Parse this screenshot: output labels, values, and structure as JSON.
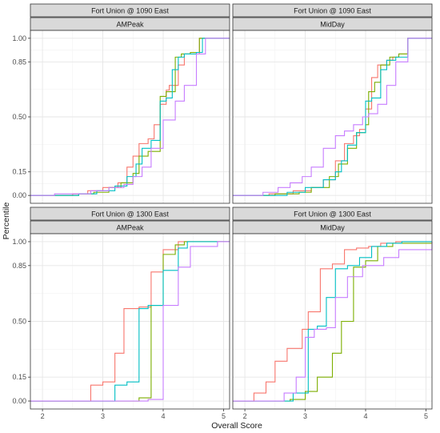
{
  "chart_data": {
    "type": "line",
    "step": true,
    "xlabel": "Overall Score",
    "ylabel": "Percentile",
    "xlim": [
      1.8,
      5.1
    ],
    "ylim": [
      -0.05,
      1.05
    ],
    "x_ticks": [
      2,
      3,
      4,
      5
    ],
    "y_ticks": [
      0.0,
      0.15,
      0.5,
      0.85,
      1.0
    ],
    "y_tick_labels": [
      "0.00",
      "0.15",
      "0.50",
      "0.85",
      "1.00"
    ],
    "grid": true,
    "legend": "none",
    "colors": [
      "#F8766D",
      "#7CAE00",
      "#00BFC4",
      "#C77CFF"
    ],
    "panels": [
      {
        "strip_top": "Fort Union @ 1090 East",
        "strip_bottom": "AMPeak",
        "series": [
          {
            "color": "#F8766D",
            "x": [
              1.8,
              2.5,
              2.75,
              3.0,
              3.25,
              3.4,
              3.5,
              3.6,
              3.75,
              3.85,
              3.95,
              4.05,
              4.1,
              4.25,
              4.35,
              4.5,
              4.6,
              5.1
            ],
            "y": [
              0.0,
              0.01,
              0.03,
              0.05,
              0.08,
              0.18,
              0.25,
              0.33,
              0.36,
              0.45,
              0.58,
              0.67,
              0.7,
              0.83,
              0.9,
              0.9,
              1.0,
              1.0
            ]
          },
          {
            "color": "#7CAE00",
            "x": [
              1.8,
              2.6,
              2.85,
              3.1,
              3.3,
              3.5,
              3.6,
              3.75,
              3.95,
              4.05,
              4.2,
              4.3,
              4.45,
              4.6,
              5.1
            ],
            "y": [
              0.0,
              0.01,
              0.02,
              0.05,
              0.08,
              0.14,
              0.25,
              0.28,
              0.63,
              0.66,
              0.88,
              0.9,
              0.91,
              1.0,
              1.0
            ]
          },
          {
            "color": "#00BFC4",
            "x": [
              1.8,
              2.6,
              2.9,
              3.2,
              3.4,
              3.55,
              3.65,
              3.8,
              3.95,
              4.05,
              4.15,
              4.25,
              4.35,
              4.55,
              4.65,
              5.1
            ],
            "y": [
              0.0,
              0.01,
              0.03,
              0.06,
              0.12,
              0.2,
              0.3,
              0.35,
              0.6,
              0.62,
              0.8,
              0.88,
              0.9,
              0.91,
              1.0,
              1.0
            ]
          },
          {
            "color": "#C77CFF",
            "x": [
              1.8,
              2.2,
              2.8,
              3.1,
              3.35,
              3.5,
              3.65,
              3.8,
              4.0,
              4.2,
              4.35,
              4.55,
              4.7,
              5.1
            ],
            "y": [
              0.0,
              0.01,
              0.03,
              0.05,
              0.07,
              0.12,
              0.18,
              0.3,
              0.48,
              0.6,
              0.7,
              0.9,
              1.0,
              1.0
            ]
          }
        ]
      },
      {
        "strip_top": "Fort Union @ 1090 East",
        "strip_bottom": "MidDay",
        "series": [
          {
            "color": "#F8766D",
            "x": [
              1.8,
              2.4,
              2.8,
              3.1,
              3.3,
              3.5,
              3.65,
              3.8,
              3.9,
              4.0,
              4.1,
              4.2,
              4.35,
              4.45,
              4.55,
              4.7,
              5.1
            ],
            "y": [
              0.0,
              0.01,
              0.03,
              0.05,
              0.1,
              0.22,
              0.33,
              0.38,
              0.42,
              0.55,
              0.75,
              0.83,
              0.86,
              0.88,
              0.9,
              1.0,
              1.0
            ]
          },
          {
            "color": "#7CAE00",
            "x": [
              1.8,
              2.5,
              2.9,
              3.1,
              3.4,
              3.55,
              3.7,
              3.85,
              4.0,
              4.05,
              4.15,
              4.25,
              4.4,
              4.55,
              4.7,
              5.1
            ],
            "y": [
              0.0,
              0.01,
              0.02,
              0.05,
              0.12,
              0.2,
              0.3,
              0.4,
              0.45,
              0.66,
              0.72,
              0.83,
              0.88,
              0.9,
              1.0,
              1.0
            ]
          },
          {
            "color": "#00BFC4",
            "x": [
              1.8,
              2.7,
              3.0,
              3.3,
              3.5,
              3.6,
              3.7,
              3.85,
              4.0,
              4.1,
              4.25,
              4.35,
              4.5,
              4.7,
              5.1
            ],
            "y": [
              0.0,
              0.02,
              0.05,
              0.1,
              0.15,
              0.22,
              0.32,
              0.4,
              0.6,
              0.62,
              0.8,
              0.86,
              0.88,
              1.0,
              1.0
            ]
          },
          {
            "color": "#C77CFF",
            "x": [
              1.8,
              2.3,
              2.55,
              2.75,
              2.95,
              3.1,
              3.3,
              3.5,
              3.65,
              3.8,
              3.95,
              4.05,
              4.2,
              4.35,
              4.5,
              4.7,
              5.1
            ],
            "y": [
              0.0,
              0.02,
              0.05,
              0.08,
              0.12,
              0.18,
              0.3,
              0.38,
              0.41,
              0.45,
              0.5,
              0.52,
              0.58,
              0.7,
              0.85,
              1.0,
              1.0
            ]
          }
        ]
      },
      {
        "strip_top": "Fort Union @ 1300 East",
        "strip_bottom": "AMPeak",
        "series": [
          {
            "color": "#F8766D",
            "x": [
              1.8,
              2.8,
              3.0,
              3.2,
              3.35,
              3.6,
              3.8,
              4.0,
              4.25,
              5.1
            ],
            "y": [
              0.0,
              0.1,
              0.12,
              0.3,
              0.58,
              0.59,
              0.81,
              0.95,
              1.0,
              1.0
            ]
          },
          {
            "color": "#7CAE00",
            "x": [
              1.8,
              3.6,
              3.8,
              4.0,
              4.2,
              4.35,
              5.1
            ],
            "y": [
              0.0,
              0.02,
              0.6,
              0.92,
              0.98,
              1.0,
              1.0
            ]
          },
          {
            "color": "#00BFC4",
            "x": [
              1.8,
              3.2,
              3.4,
              3.6,
              3.75,
              4.0,
              4.25,
              4.4,
              5.1
            ],
            "y": [
              0.0,
              0.1,
              0.12,
              0.58,
              0.6,
              0.82,
              0.96,
              1.0,
              1.0
            ]
          },
          {
            "color": "#C77CFF",
            "x": [
              1.8,
              3.6,
              3.75,
              4.0,
              4.25,
              4.45,
              4.9,
              5.1
            ],
            "y": [
              0.0,
              0.0,
              0.01,
              0.6,
              0.84,
              0.97,
              1.0,
              1.0
            ]
          }
        ]
      },
      {
        "strip_top": "Fort Union @ 1300 East",
        "strip_bottom": "MidDay",
        "series": [
          {
            "color": "#F8766D",
            "x": [
              1.8,
              2.15,
              2.35,
              2.5,
              2.7,
              2.95,
              3.05,
              3.25,
              3.45,
              3.65,
              3.85,
              4.05,
              4.25,
              4.5,
              5.1
            ],
            "y": [
              0.0,
              0.05,
              0.12,
              0.25,
              0.33,
              0.45,
              0.56,
              0.83,
              0.86,
              0.95,
              0.96,
              0.97,
              0.99,
              1.0,
              1.0
            ]
          },
          {
            "color": "#7CAE00",
            "x": [
              1.8,
              2.75,
              3.0,
              3.2,
              3.45,
              3.6,
              3.8,
              4.0,
              4.2,
              4.45,
              5.1
            ],
            "y": [
              0.0,
              0.01,
              0.06,
              0.15,
              0.3,
              0.5,
              0.84,
              0.88,
              0.97,
              0.99,
              1.0
            ]
          },
          {
            "color": "#00BFC4",
            "x": [
              1.8,
              2.8,
              3.05,
              3.2,
              3.35,
              3.5,
              3.7,
              3.9,
              4.1,
              4.35,
              4.6,
              5.1
            ],
            "y": [
              0.0,
              0.05,
              0.45,
              0.47,
              0.65,
              0.83,
              0.85,
              0.9,
              0.97,
              0.99,
              1.0,
              1.0
            ]
          },
          {
            "color": "#C77CFF",
            "x": [
              1.8,
              2.65,
              2.85,
              3.0,
              3.15,
              3.35,
              3.5,
              3.7,
              3.95,
              4.3,
              4.55,
              5.1
            ],
            "y": [
              0.0,
              0.05,
              0.15,
              0.4,
              0.45,
              0.46,
              0.65,
              0.78,
              0.85,
              0.9,
              0.95,
              1.0
            ]
          }
        ]
      }
    ]
  }
}
